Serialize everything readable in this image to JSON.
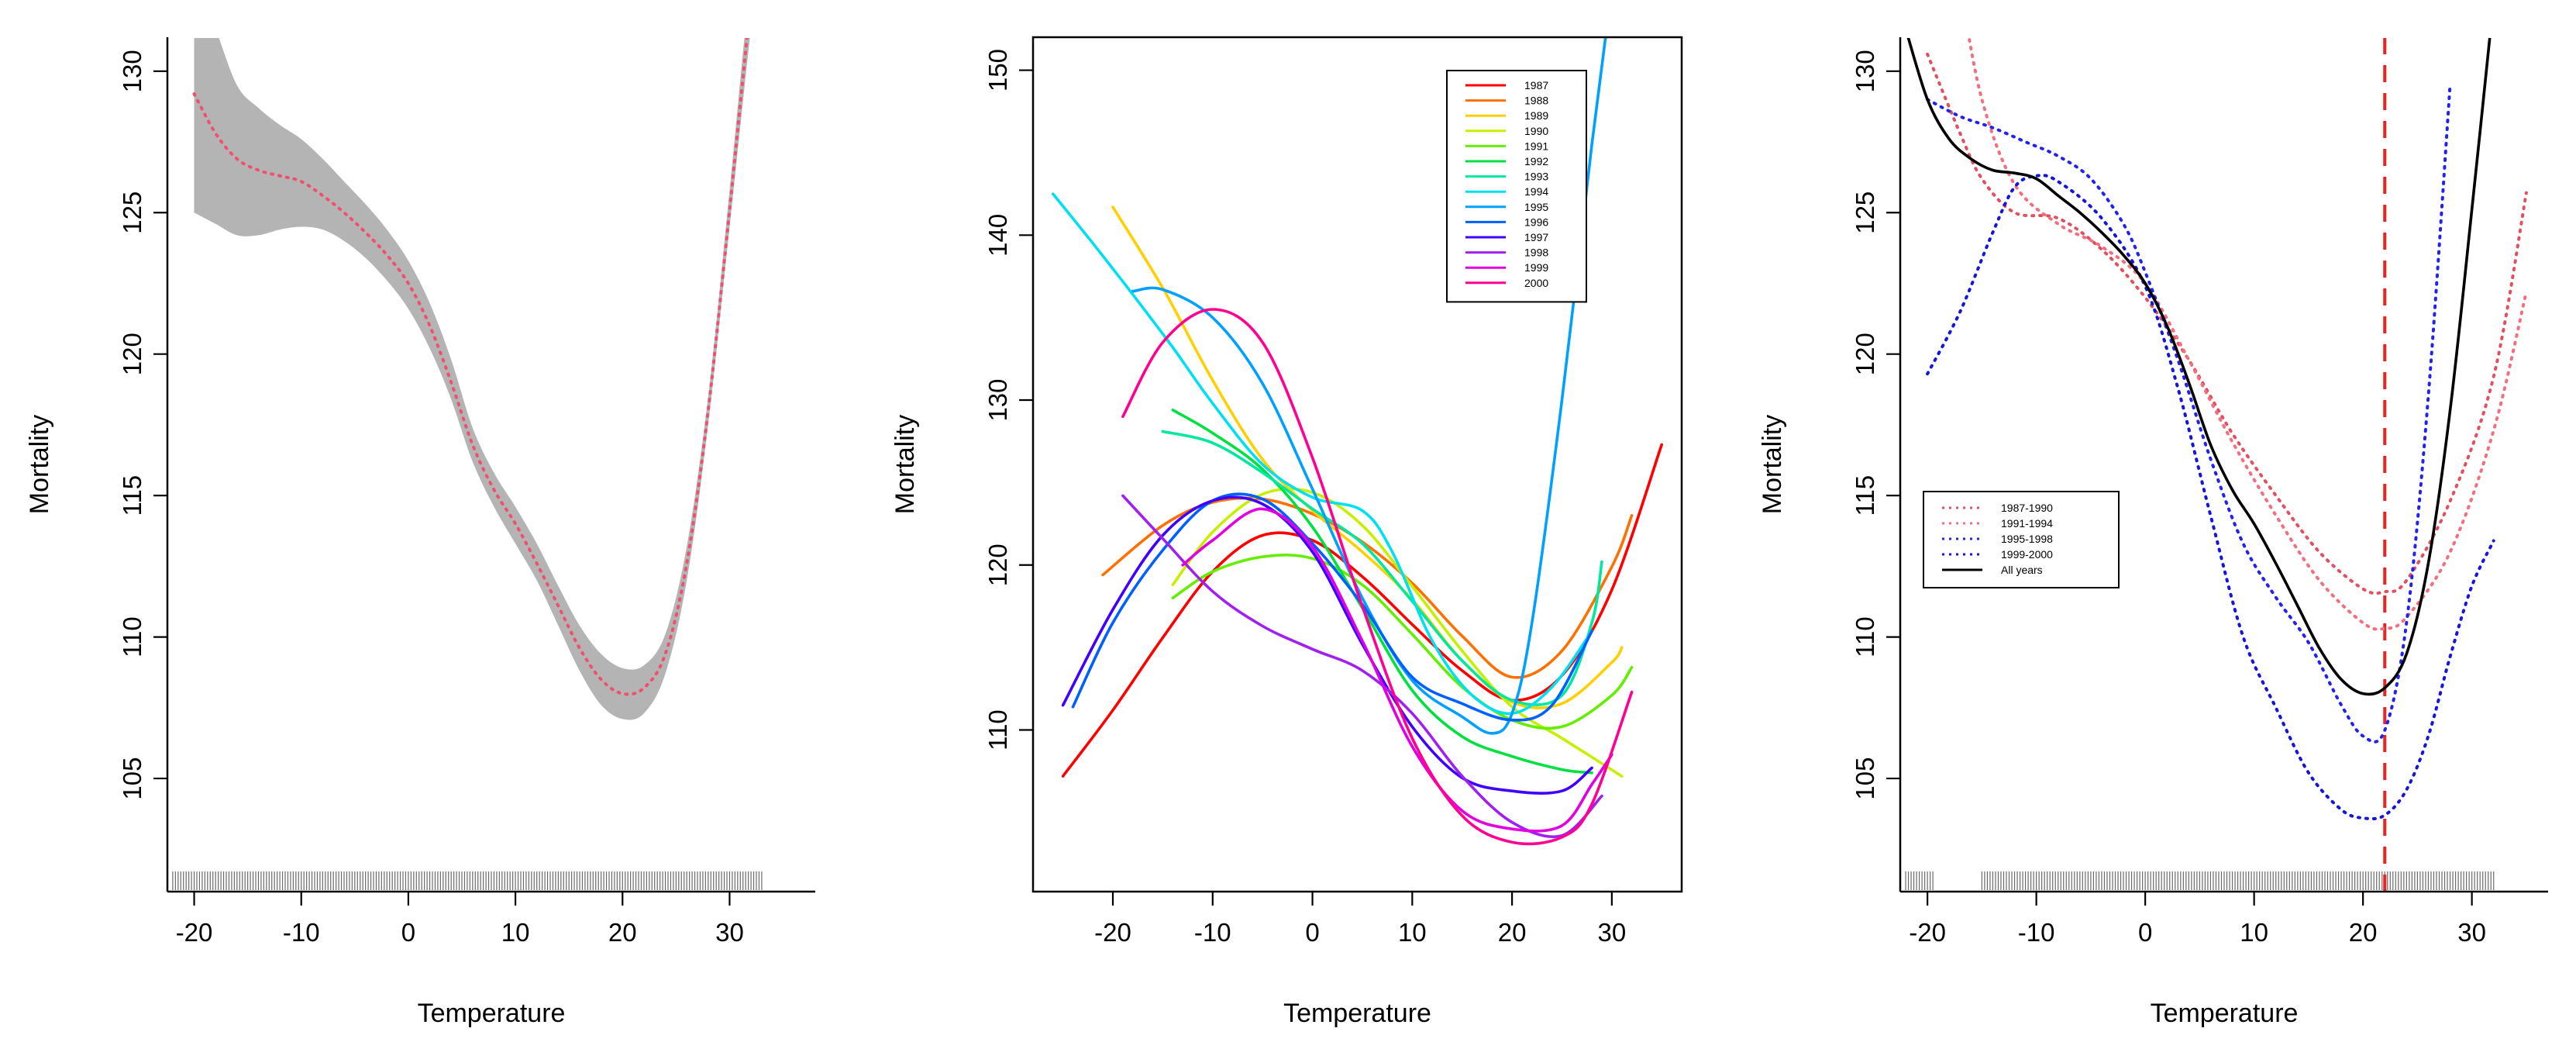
{
  "chart_data": [
    {
      "type": "line",
      "xlabel": "Temperature",
      "ylabel": "Mortality",
      "xlim": [
        -22.5,
        38
      ],
      "ylim": [
        101,
        131.2
      ],
      "xticks": [
        "-20",
        "-10",
        "0",
        "10",
        "20",
        "30"
      ],
      "yticks": [
        "105",
        "110",
        "115",
        "120",
        "125",
        "130"
      ],
      "band": {
        "x": [
          -20,
          -18,
          -16,
          -14,
          -12,
          -10,
          -8,
          -6,
          -4,
          -2,
          0,
          2,
          4,
          6,
          8,
          10,
          12,
          14,
          16,
          18,
          20,
          22,
          24,
          26,
          28,
          30,
          32,
          33
        ],
        "lower": [
          125.0,
          124.6,
          124.2,
          124.2,
          124.4,
          124.5,
          124.4,
          124.0,
          123.4,
          122.6,
          121.6,
          120.2,
          118.4,
          116.2,
          114.6,
          113.3,
          112.0,
          110.4,
          108.8,
          107.6,
          107.1,
          107.3,
          108.7,
          112.0,
          117.5,
          124.5,
          131.5,
          134
        ],
        "upper": [
          133.5,
          131.5,
          129.5,
          128.7,
          128.1,
          127.6,
          126.9,
          126.1,
          125.3,
          124.4,
          123.3,
          121.8,
          119.8,
          117.4,
          115.8,
          114.6,
          113.3,
          111.8,
          110.4,
          109.4,
          108.9,
          109.0,
          110.1,
          113.2,
          118.5,
          125.8,
          133.5,
          136
        ]
      },
      "series": [
        {
          "name": "fit",
          "color": "#f0506e",
          "dash": "dotted",
          "x": [
            -20,
            -18,
            -16,
            -14,
            -12,
            -10,
            -8,
            -6,
            -4,
            -2,
            0,
            2,
            4,
            6,
            8,
            10,
            12,
            14,
            16,
            18,
            20,
            22,
            24,
            26,
            28,
            30,
            32,
            33
          ],
          "y": [
            129.2,
            127.8,
            126.9,
            126.5,
            126.3,
            126.1,
            125.6,
            125.0,
            124.3,
            123.5,
            122.5,
            121.0,
            119.0,
            116.8,
            115.2,
            114.0,
            112.6,
            111.1,
            109.6,
            108.5,
            108.0,
            108.2,
            109.4,
            112.6,
            118.0,
            125.1,
            132.5,
            135
          ]
        }
      ],
      "rug": "-22 to 33"
    },
    {
      "type": "line",
      "xlabel": "Temperature",
      "ylabel": "Mortality",
      "xlim": [
        -28,
        37
      ],
      "ylim": [
        100.2,
        152
      ],
      "xticks": [
        "-20",
        "-10",
        "0",
        "10",
        "20",
        "30"
      ],
      "yticks": [
        "110",
        "120",
        "130",
        "140",
        "150"
      ],
      "legend": {
        "position": "top-right"
      },
      "series": [
        {
          "name": "1987",
          "color": "#ff0000",
          "x": [
            -25,
            -20,
            -15,
            -10,
            -5,
            0,
            5,
            10,
            15,
            20,
            25,
            30,
            35
          ],
          "y": [
            107.2,
            111.2,
            115.6,
            119.6,
            121.8,
            121.5,
            119.3,
            116.4,
            113.6,
            111.8,
            113.3,
            118.5,
            127.3
          ]
        },
        {
          "name": "1988",
          "color": "#ff7000",
          "x": [
            -21,
            -15,
            -10,
            -5,
            0,
            5,
            10,
            15,
            20,
            25,
            30,
            32
          ],
          "y": [
            119.4,
            122.4,
            123.8,
            124.0,
            123.1,
            121.4,
            118.9,
            115.7,
            113.2,
            114.8,
            119.9,
            123.0
          ]
        },
        {
          "name": "1989",
          "color": "#ffd000",
          "x": [
            -20,
            -15,
            -10,
            -5,
            0,
            5,
            10,
            15,
            20,
            25,
            30,
            31
          ],
          "y": [
            141.7,
            136.8,
            131.2,
            126.4,
            123.3,
            120.8,
            117.9,
            114.2,
            111.7,
            111.6,
            114.1,
            115.0
          ]
        },
        {
          "name": "1990",
          "color": "#c8ee00",
          "x": [
            -14,
            -10,
            -5,
            0,
            5,
            10,
            15,
            20,
            25,
            31
          ],
          "y": [
            118.8,
            122.0,
            124.3,
            124.4,
            122.4,
            118.7,
            114.8,
            111.4,
            109.5,
            107.2
          ]
        },
        {
          "name": "1991",
          "color": "#64ee00",
          "x": [
            -14,
            -10,
            -5,
            0,
            5,
            10,
            15,
            20,
            25,
            30,
            32
          ],
          "y": [
            118.0,
            119.6,
            120.5,
            120.4,
            118.8,
            115.8,
            112.6,
            110.6,
            110.2,
            112.1,
            113.8
          ]
        },
        {
          "name": "1992",
          "color": "#00e040",
          "x": [
            -14,
            -10,
            -5,
            0,
            5,
            10,
            15,
            20,
            25,
            28
          ],
          "y": [
            129.4,
            128.0,
            125.8,
            122.3,
            117.4,
            112.4,
            109.6,
            108.4,
            107.6,
            107.4
          ]
        },
        {
          "name": "1993",
          "color": "#00e8a0",
          "x": [
            -15,
            -10,
            -5,
            0,
            5,
            10,
            15,
            20,
            25,
            28,
            29
          ],
          "y": [
            128.1,
            127.4,
            125.6,
            123.4,
            121.3,
            117.8,
            114.2,
            111.8,
            112.1,
            116.5,
            120.2
          ]
        },
        {
          "name": "1994",
          "color": "#00e0f0",
          "x": [
            -26,
            -22,
            -18,
            -14,
            -10,
            -5,
            0,
            5,
            8,
            12,
            16,
            20,
            24,
            28
          ],
          "y": [
            142.5,
            139.5,
            136.4,
            133.2,
            129.8,
            126.1,
            124.1,
            123.3,
            120.8,
            115.4,
            112.1,
            111.0,
            112.6,
            116.0
          ]
        },
        {
          "name": "1995",
          "color": "#00a0ff",
          "x": [
            -18,
            -15,
            -10,
            -5,
            0,
            5,
            10,
            15,
            18,
            20,
            22,
            25,
            28,
            30
          ],
          "y": [
            136.6,
            136.7,
            135.0,
            131.0,
            124.6,
            118.0,
            113.0,
            110.8,
            109.8,
            111.0,
            116.5,
            130.0,
            145.5,
            155.0
          ]
        },
        {
          "name": "1996",
          "color": "#0060ff",
          "x": [
            -24,
            -20,
            -15,
            -10,
            -5,
            0,
            5,
            10,
            15,
            20,
            24,
            28
          ],
          "y": [
            111.4,
            116.5,
            120.9,
            123.9,
            124.0,
            121.3,
            117.6,
            113.2,
            111.6,
            110.6,
            111.5,
            116.0
          ]
        },
        {
          "name": "1997",
          "color": "#4000ff",
          "x": [
            -25,
            -20,
            -15,
            -10,
            -5,
            0,
            5,
            10,
            15,
            20,
            25,
            28
          ],
          "y": [
            111.5,
            117.3,
            121.8,
            123.9,
            123.7,
            120.8,
            115.2,
            110.2,
            107.1,
            106.3,
            106.3,
            107.7
          ]
        },
        {
          "name": "1998",
          "color": "#a020f0",
          "x": [
            -19,
            -15,
            -10,
            -5,
            0,
            5,
            10,
            15,
            20,
            25,
            29
          ],
          "y": [
            124.2,
            121.6,
            118.4,
            116.3,
            114.9,
            113.6,
            111.0,
            107.2,
            104.4,
            103.6,
            106.0
          ]
        },
        {
          "name": "1999",
          "color": "#e000e0",
          "x": [
            -13,
            -10,
            -5,
            0,
            5,
            10,
            15,
            20,
            25,
            28,
            30
          ],
          "y": [
            120.0,
            121.5,
            123.4,
            121.1,
            115.4,
            109.0,
            105.1,
            104.0,
            104.2,
            106.7,
            108.5
          ]
        },
        {
          "name": "2000",
          "color": "#ff0090",
          "x": [
            -19,
            -15,
            -10,
            -5,
            0,
            5,
            10,
            15,
            20,
            25,
            28,
            32
          ],
          "y": [
            129.0,
            133.5,
            135.5,
            133.5,
            126.5,
            117.5,
            109.5,
            104.8,
            103.2,
            103.5,
            105.5,
            112.3
          ]
        }
      ]
    },
    {
      "type": "line",
      "xlabel": "Temperature",
      "ylabel": "Mortality",
      "xlim": [
        -22.5,
        37
      ],
      "ylim": [
        101,
        131.2
      ],
      "xticks": [
        "-20",
        "-10",
        "0",
        "10",
        "20",
        "30"
      ],
      "yticks": [
        "105",
        "110",
        "115",
        "120",
        "125",
        "130"
      ],
      "vline": {
        "x": 22,
        "color": "#ee2222"
      },
      "legend": {
        "position": "center-left"
      },
      "series": [
        {
          "name": "1987-1990",
          "color": "#e05060",
          "dash": "dotted",
          "x": [
            -20,
            -17,
            -15,
            -12,
            -8,
            -4,
            0,
            4,
            8,
            12,
            16,
            20,
            22,
            24,
            28,
            32,
            35
          ],
          "y": [
            130.6,
            127.8,
            126.2,
            125.0,
            124.8,
            123.7,
            122.0,
            119.8,
            117.2,
            115.0,
            113.0,
            111.7,
            111.6,
            112.0,
            114.8,
            119.2,
            125.7
          ]
        },
        {
          "name": "1991-1994",
          "color": "#f07080",
          "dash": "dotted",
          "x": [
            -17,
            -15,
            -12,
            -8,
            -4,
            0,
            4,
            8,
            12,
            16,
            20,
            22,
            24,
            28,
            32,
            35
          ],
          "y": [
            133.0,
            129.0,
            126.0,
            124.6,
            123.8,
            122.5,
            119.8,
            116.9,
            114.3,
            112.0,
            110.5,
            110.3,
            110.7,
            113.0,
            117.3,
            122.2
          ]
        },
        {
          "name": "1995-1998",
          "color": "#2222ee",
          "dash": "dotted",
          "x": [
            -20,
            -17,
            -14,
            -11,
            -8,
            -5,
            -2,
            0,
            3,
            6,
            9,
            12,
            15,
            18,
            20,
            22,
            24,
            26,
            28
          ],
          "y": [
            129.0,
            128.4,
            128.0,
            127.5,
            127.0,
            126.2,
            124.6,
            122.9,
            119.8,
            116.3,
            113.3,
            111.4,
            109.8,
            107.6,
            106.5,
            106.7,
            110.5,
            118.5,
            129.5
          ]
        },
        {
          "name": "1999-2000",
          "color": "#1414dd",
          "dash": "dotted",
          "x": [
            -20,
            -17,
            -14,
            -12,
            -10,
            -8,
            -4,
            0,
            3,
            6,
            9,
            12,
            15,
            18,
            20,
            22,
            24,
            26,
            28,
            30,
            32
          ],
          "y": [
            119.3,
            121.5,
            124.3,
            125.9,
            126.3,
            126.1,
            124.8,
            122.4,
            118.8,
            114.3,
            110.0,
            107.5,
            105.2,
            103.9,
            103.6,
            103.7,
            104.6,
            106.5,
            109.3,
            111.8,
            113.4
          ]
        },
        {
          "name": "All years",
          "color": "#000000",
          "dash": "solid",
          "x": [
            -22,
            -20,
            -18,
            -16,
            -14,
            -12,
            -10,
            -8,
            -6,
            -4,
            -2,
            0,
            2,
            4,
            6,
            8,
            10,
            12,
            14,
            16,
            18,
            20,
            22,
            24,
            26,
            28,
            30,
            32
          ],
          "y": [
            131.5,
            129.0,
            127.6,
            126.9,
            126.5,
            126.4,
            126.2,
            125.6,
            125.0,
            124.3,
            123.5,
            122.5,
            121.0,
            119.0,
            116.8,
            115.2,
            114.0,
            112.6,
            111.1,
            109.6,
            108.5,
            108.0,
            108.2,
            109.4,
            112.6,
            118.0,
            125.1,
            132.5
          ]
        }
      ],
      "rug": "-22 to 32"
    }
  ]
}
